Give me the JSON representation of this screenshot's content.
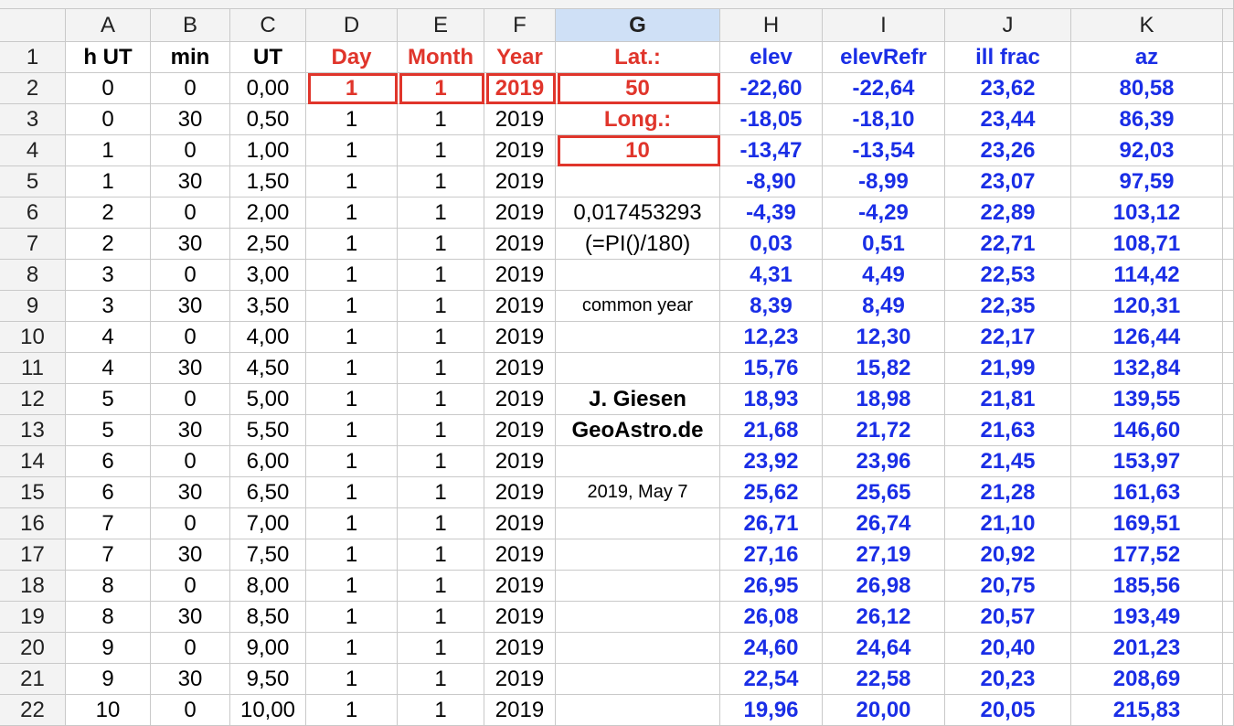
{
  "columns": [
    "A",
    "B",
    "C",
    "D",
    "E",
    "F",
    "G",
    "H",
    "I",
    "J",
    "K"
  ],
  "rows": [
    {
      "row": "1",
      "cells": {
        "A": "h UT",
        "B": "min",
        "C": "UT",
        "D": "Day",
        "E": "Month",
        "F": "Year",
        "G": "Lat.:",
        "H": "elev",
        "I": "elevRefr",
        "J": "ill frac",
        "K": "az"
      }
    },
    {
      "row": "2",
      "cells": {
        "A": "0",
        "B": "0",
        "C": "0,00",
        "D": "1",
        "E": "1",
        "F": "2019",
        "G": "50",
        "H": "-22,60",
        "I": "-22,64",
        "J": "23,62",
        "K": "80,58"
      }
    },
    {
      "row": "3",
      "cells": {
        "A": "0",
        "B": "30",
        "C": "0,50",
        "D": "1",
        "E": "1",
        "F": "2019",
        "G": "Long.:",
        "H": "-18,05",
        "I": "-18,10",
        "J": "23,44",
        "K": "86,39"
      }
    },
    {
      "row": "4",
      "cells": {
        "A": "1",
        "B": "0",
        "C": "1,00",
        "D": "1",
        "E": "1",
        "F": "2019",
        "G": "10",
        "H": "-13,47",
        "I": "-13,54",
        "J": "23,26",
        "K": "92,03"
      }
    },
    {
      "row": "5",
      "cells": {
        "A": "1",
        "B": "30",
        "C": "1,50",
        "D": "1",
        "E": "1",
        "F": "2019",
        "H": "-8,90",
        "I": "-8,99",
        "J": "23,07",
        "K": "97,59"
      }
    },
    {
      "row": "6",
      "cells": {
        "A": "2",
        "B": "0",
        "C": "2,00",
        "D": "1",
        "E": "1",
        "F": "2019",
        "G": "0,017453293",
        "H": "-4,39",
        "I": "-4,29",
        "J": "22,89",
        "K": "103,12"
      }
    },
    {
      "row": "7",
      "cells": {
        "A": "2",
        "B": "30",
        "C": "2,50",
        "D": "1",
        "E": "1",
        "F": "2019",
        "G": "(=PI()/180)",
        "H": "0,03",
        "I": "0,51",
        "J": "22,71",
        "K": "108,71"
      }
    },
    {
      "row": "8",
      "cells": {
        "A": "3",
        "B": "0",
        "C": "3,00",
        "D": "1",
        "E": "1",
        "F": "2019",
        "H": "4,31",
        "I": "4,49",
        "J": "22,53",
        "K": "114,42"
      }
    },
    {
      "row": "9",
      "cells": {
        "A": "3",
        "B": "30",
        "C": "3,50",
        "D": "1",
        "E": "1",
        "F": "2019",
        "G": "common year",
        "H": "8,39",
        "I": "8,49",
        "J": "22,35",
        "K": "120,31"
      }
    },
    {
      "row": "10",
      "cells": {
        "A": "4",
        "B": "0",
        "C": "4,00",
        "D": "1",
        "E": "1",
        "F": "2019",
        "H": "12,23",
        "I": "12,30",
        "J": "22,17",
        "K": "126,44"
      }
    },
    {
      "row": "11",
      "cells": {
        "A": "4",
        "B": "30",
        "C": "4,50",
        "D": "1",
        "E": "1",
        "F": "2019",
        "H": "15,76",
        "I": "15,82",
        "J": "21,99",
        "K": "132,84"
      }
    },
    {
      "row": "12",
      "cells": {
        "A": "5",
        "B": "0",
        "C": "5,00",
        "D": "1",
        "E": "1",
        "F": "2019",
        "G": "J. Giesen",
        "H": "18,93",
        "I": "18,98",
        "J": "21,81",
        "K": "139,55"
      }
    },
    {
      "row": "13",
      "cells": {
        "A": "5",
        "B": "30",
        "C": "5,50",
        "D": "1",
        "E": "1",
        "F": "2019",
        "G": "GeoAstro.de",
        "H": "21,68",
        "I": "21,72",
        "J": "21,63",
        "K": "146,60"
      }
    },
    {
      "row": "14",
      "cells": {
        "A": "6",
        "B": "0",
        "C": "6,00",
        "D": "1",
        "E": "1",
        "F": "2019",
        "H": "23,92",
        "I": "23,96",
        "J": "21,45",
        "K": "153,97"
      }
    },
    {
      "row": "15",
      "cells": {
        "A": "6",
        "B": "30",
        "C": "6,50",
        "D": "1",
        "E": "1",
        "F": "2019",
        "G": "2019, May 7",
        "H": "25,62",
        "I": "25,65",
        "J": "21,28",
        "K": "161,63"
      }
    },
    {
      "row": "16",
      "cells": {
        "A": "7",
        "B": "0",
        "C": "7,00",
        "D": "1",
        "E": "1",
        "F": "2019",
        "H": "26,71",
        "I": "26,74",
        "J": "21,10",
        "K": "169,51"
      }
    },
    {
      "row": "17",
      "cells": {
        "A": "7",
        "B": "30",
        "C": "7,50",
        "D": "1",
        "E": "1",
        "F": "2019",
        "H": "27,16",
        "I": "27,19",
        "J": "20,92",
        "K": "177,52"
      }
    },
    {
      "row": "18",
      "cells": {
        "A": "8",
        "B": "0",
        "C": "8,00",
        "D": "1",
        "E": "1",
        "F": "2019",
        "H": "26,95",
        "I": "26,98",
        "J": "20,75",
        "K": "185,56"
      }
    },
    {
      "row": "19",
      "cells": {
        "A": "8",
        "B": "30",
        "C": "8,50",
        "D": "1",
        "E": "1",
        "F": "2019",
        "H": "26,08",
        "I": "26,12",
        "J": "20,57",
        "K": "193,49"
      }
    },
    {
      "row": "20",
      "cells": {
        "A": "9",
        "B": "0",
        "C": "9,00",
        "D": "1",
        "E": "1",
        "F": "2019",
        "H": "24,60",
        "I": "24,64",
        "J": "20,40",
        "K": "201,23"
      }
    },
    {
      "row": "21",
      "cells": {
        "A": "9",
        "B": "30",
        "C": "9,50",
        "D": "1",
        "E": "1",
        "F": "2019",
        "H": "22,54",
        "I": "22,58",
        "J": "20,23",
        "K": "208,69"
      }
    },
    {
      "row": "22",
      "cells": {
        "A": "10",
        "B": "0",
        "C": "10,00",
        "D": "1",
        "E": "1",
        "F": "2019",
        "H": "19,96",
        "I": "20,00",
        "J": "20,05",
        "K": "215,83"
      }
    }
  ]
}
